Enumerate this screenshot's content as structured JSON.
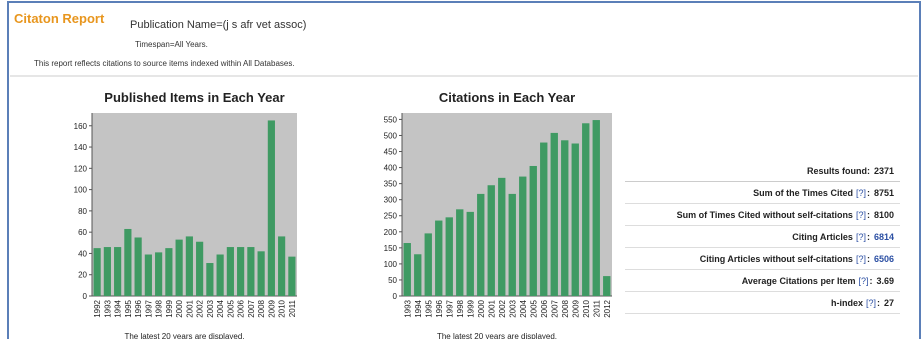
{
  "header": {
    "title": "Citaton Report",
    "query": "Publication Name=(j s afr vet assoc)",
    "timespan": "Timespan=All Years.",
    "note": "This report reflects citations to source items indexed within All Databases."
  },
  "chart_data": [
    {
      "type": "bar",
      "title": "Published Items in Each Year",
      "categories": [
        "1992",
        "1993",
        "1994",
        "1995",
        "1996",
        "1997",
        "1998",
        "1999",
        "2000",
        "2001",
        "2002",
        "2003",
        "2004",
        "2005",
        "2006",
        "2007",
        "2008",
        "2009",
        "2010",
        "2011"
      ],
      "values": [
        45,
        46,
        46,
        63,
        55,
        39,
        41,
        45,
        53,
        56,
        51,
        31,
        39,
        46,
        46,
        46,
        42,
        165,
        56,
        37
      ],
      "color": "#3f9a63",
      "ylim": [
        0,
        172
      ],
      "yticks": [
        0,
        20,
        40,
        60,
        80,
        100,
        120,
        140,
        160
      ],
      "grid": false,
      "footnote": "The latest 20 years are displayed."
    },
    {
      "type": "bar",
      "title": "Citations in Each Year",
      "categories": [
        "1993",
        "1994",
        "1995",
        "1996",
        "1997",
        "1998",
        "1999",
        "2000",
        "2001",
        "2002",
        "2003",
        "2004",
        "2005",
        "2006",
        "2007",
        "2008",
        "2009",
        "2010",
        "2011",
        "2012"
      ],
      "values": [
        165,
        130,
        195,
        235,
        245,
        270,
        262,
        318,
        345,
        368,
        318,
        372,
        405,
        478,
        508,
        485,
        475,
        538,
        548,
        62
      ],
      "color": "#3f9a63",
      "ylim": [
        0,
        570
      ],
      "yticks": [
        0,
        50,
        100,
        150,
        200,
        250,
        300,
        350,
        400,
        450,
        500,
        550
      ],
      "grid": false,
      "footnote": "The latest 20 years are displayed."
    }
  ],
  "stats": [
    {
      "label": "Results found:",
      "value": 2371
    },
    {
      "label": "Sum of the Times Cited",
      "help": "[?]",
      "colon": ":",
      "value": 8751
    },
    {
      "label": "Sum of Times Cited without self-citations",
      "help": "[?]",
      "colon": ":",
      "value": 8100
    },
    {
      "label": "Citing Articles",
      "help": "[?]",
      "colon": ":",
      "value": 6814,
      "link": true
    },
    {
      "label": "Citing Articles without self-citations",
      "help": "[?]",
      "colon": ":",
      "value": 6506,
      "link": true
    },
    {
      "label": "Average Citations per Item",
      "help": "[?]",
      "colon": ":",
      "value": 3.69
    },
    {
      "label": "h-index",
      "help": "[?]",
      "colon": ":",
      "value": 27
    }
  ]
}
